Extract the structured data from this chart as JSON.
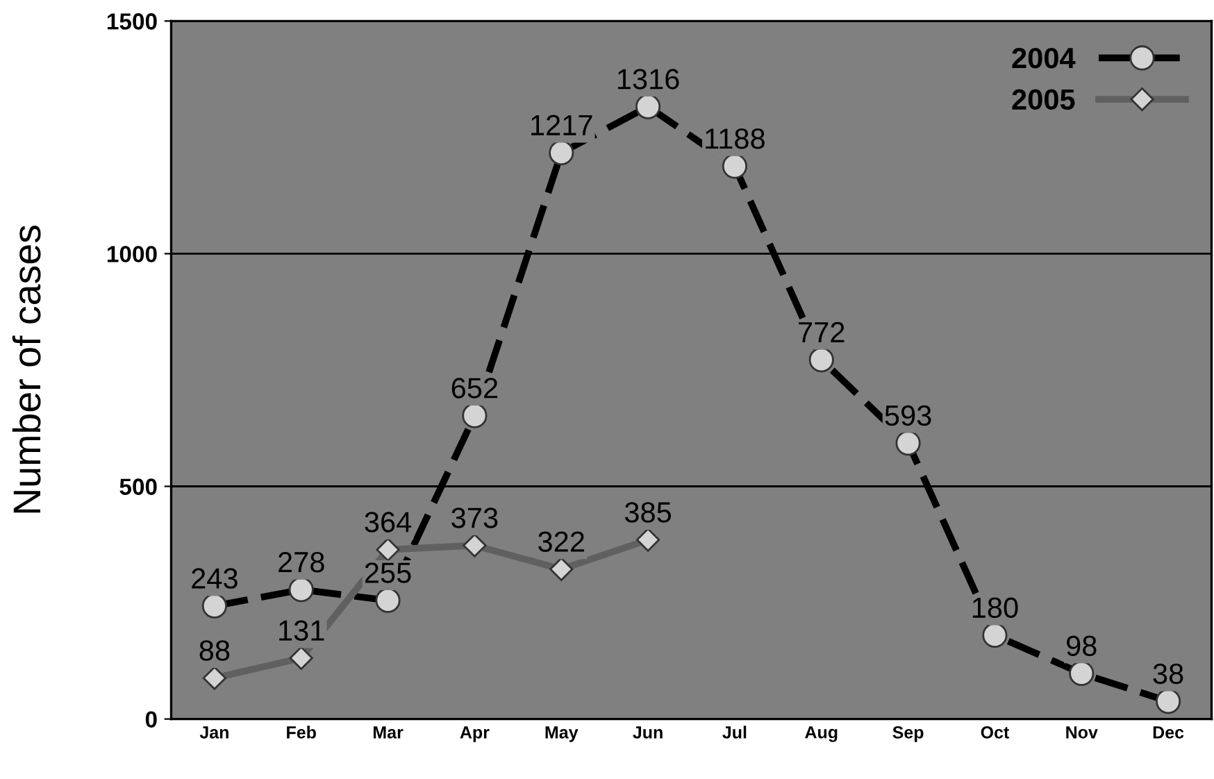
{
  "chart_data": {
    "type": "line",
    "ylabel": "Number of cases",
    "categories": [
      "Jan",
      "Feb",
      "Mar",
      "Apr",
      "May",
      "Jun",
      "Jul",
      "Aug",
      "Sep",
      "Oct",
      "Nov",
      "Dec"
    ],
    "series": [
      {
        "name": "2004",
        "color": "#000000",
        "marker": "circle",
        "line_style": "dashed",
        "values": [
          243,
          278,
          255,
          652,
          1217,
          1316,
          1188,
          772,
          593,
          180,
          98,
          38
        ]
      },
      {
        "name": "2005",
        "color": "#606060",
        "marker": "diamond",
        "line_style": "solid",
        "values": [
          88,
          131,
          364,
          373,
          322,
          385,
          null,
          null,
          null,
          null,
          null,
          null
        ]
      }
    ],
    "ylim": [
      0,
      1500
    ],
    "yticks": [
      0,
      500,
      1000,
      1500
    ],
    "grid": "y",
    "legend": "top right",
    "data_labels": true
  }
}
